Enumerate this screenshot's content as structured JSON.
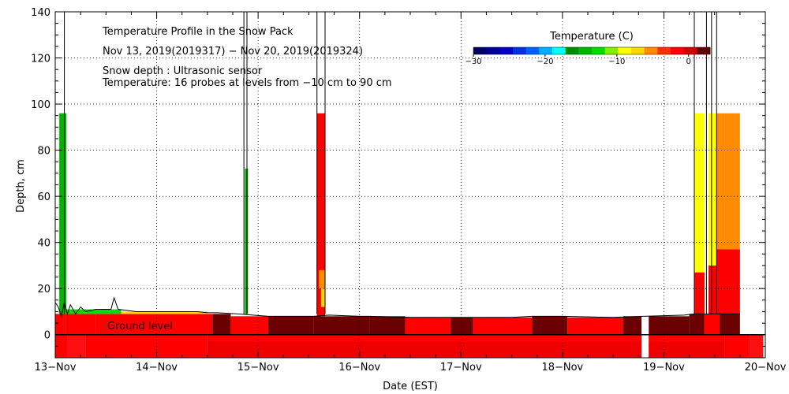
{
  "chart_data": {
    "type": "heatmap",
    "title": "Temperature Profile in the Snow Pack",
    "subtitle": "Nov 13, 2019(2019317) − Nov 20, 2019(2019324)",
    "notes": [
      "Snow depth : Ultrasonic sensor",
      "Temperature: 16 probes at levels from −10 cm to 90 cm"
    ],
    "ground_label": "Ground level",
    "xlabel": "Date (EST)",
    "ylabel": "Depth, cm",
    "x_ticks": [
      "13−Nov",
      "14−Nov",
      "15−Nov",
      "16−Nov",
      "17−Nov",
      "18−Nov",
      "19−Nov",
      "20−Nov"
    ],
    "xlim": [
      0,
      7
    ],
    "y_ticks": [
      0,
      20,
      40,
      60,
      80,
      100,
      120,
      140
    ],
    "ylim": [
      -10,
      140
    ],
    "grid": true,
    "colorbar": {
      "label": "Temperature (C)",
      "ticks": [
        "−30",
        "−20",
        "−10",
        "0"
      ],
      "range": [
        -30,
        3
      ],
      "colors": [
        "#000060",
        "#000090",
        "#0000c0",
        "#0030e0",
        "#0060ff",
        "#00b0ff",
        "#00ffff",
        "#008c00",
        "#00b400",
        "#00dc00",
        "#80f000",
        "#ffff00",
        "#ffd700",
        "#ff8c00",
        "#ff3000",
        "#ff0000",
        "#d00000",
        "#600000"
      ]
    },
    "regions": [
      {
        "x0": 0.0,
        "x1": 0.12,
        "y0": -10,
        "y1": 0,
        "color": "#ff0000"
      },
      {
        "x0": 0.12,
        "x1": 0.3,
        "y0": -10,
        "y1": 0,
        "color": "#ff1010"
      },
      {
        "x0": 0.3,
        "x1": 1.5,
        "y0": -10,
        "y1": 0,
        "color": "#ff0000"
      },
      {
        "x0": 1.5,
        "x1": 6.6,
        "y0": -10,
        "y1": -3,
        "color": "#ee0000"
      },
      {
        "x0": 1.5,
        "x1": 6.6,
        "y0": -3,
        "y1": 0,
        "color": "#ff0000"
      },
      {
        "x0": 6.6,
        "x1": 6.85,
        "y0": -10,
        "y1": 0,
        "color": "#ff0000"
      },
      {
        "x0": 6.85,
        "x1": 6.98,
        "y0": -10,
        "y1": 0,
        "color": "#ff1010"
      },
      {
        "x0": 0.0,
        "x1": 0.1,
        "y0": 0,
        "y1": 9,
        "color": "#ff0000"
      },
      {
        "x0": 0.1,
        "x1": 0.4,
        "y0": 0,
        "y1": 9,
        "color": "#ff0000"
      },
      {
        "x0": 0.4,
        "x1": 1.55,
        "y0": 0,
        "y1": 9,
        "color": "#ff0000"
      },
      {
        "x0": 1.55,
        "x1": 1.73,
        "y0": 0,
        "y1": 9,
        "color": "#6a0000"
      },
      {
        "x0": 1.73,
        "x1": 2.1,
        "y0": 0,
        "y1": 8,
        "color": "#ff0000"
      },
      {
        "x0": 2.1,
        "x1": 2.55,
        "y0": 0,
        "y1": 8,
        "color": "#6a0000"
      },
      {
        "x0": 2.55,
        "x1": 3.1,
        "y0": 0,
        "y1": 8,
        "color": "#6a0000"
      },
      {
        "x0": 3.1,
        "x1": 3.45,
        "y0": 0,
        "y1": 8,
        "color": "#6a0000"
      },
      {
        "x0": 3.45,
        "x1": 3.9,
        "y0": 0,
        "y1": 7.5,
        "color": "#ff0000"
      },
      {
        "x0": 3.9,
        "x1": 4.12,
        "y0": 0,
        "y1": 7.5,
        "color": "#6a0000"
      },
      {
        "x0": 4.12,
        "x1": 4.7,
        "y0": 0,
        "y1": 7.5,
        "color": "#ff0000"
      },
      {
        "x0": 4.7,
        "x1": 5.05,
        "y0": 0,
        "y1": 8,
        "color": "#6a0000"
      },
      {
        "x0": 5.05,
        "x1": 5.6,
        "y0": 0,
        "y1": 7.5,
        "color": "#ff0000"
      },
      {
        "x0": 5.6,
        "x1": 5.78,
        "y0": 0,
        "y1": 8,
        "color": "#6a0000"
      },
      {
        "x0": 5.85,
        "x1": 6.25,
        "y0": 0,
        "y1": 8,
        "color": "#6a0000"
      },
      {
        "x0": 6.25,
        "x1": 6.4,
        "y0": 0,
        "y1": 9,
        "color": "#6a0000"
      },
      {
        "x0": 6.4,
        "x1": 6.55,
        "y0": 0,
        "y1": 9,
        "color": "#ff0000"
      },
      {
        "x0": 6.55,
        "x1": 6.75,
        "y0": 0,
        "y1": 9,
        "color": "#6a0000"
      },
      {
        "x0": 0.04,
        "x1": 0.11,
        "y0": 9,
        "y1": 96,
        "color": "#00b400"
      },
      {
        "x0": 0.11,
        "x1": 0.65,
        "y0": 9,
        "y1": 11,
        "color": "#00dc00"
      },
      {
        "x0": 0.65,
        "x1": 1.5,
        "y0": 9,
        "y1": 10,
        "color": "#ffd700"
      },
      {
        "x0": 1.87,
        "x1": 1.9,
        "y0": 9,
        "y1": 72,
        "color": "#00b400"
      },
      {
        "x0": 2.58,
        "x1": 2.66,
        "y0": 8,
        "y1": 96,
        "color": "#ff0000"
      },
      {
        "x0": 2.6,
        "x1": 2.66,
        "y0": 20,
        "y1": 28,
        "color": "#ff8c00"
      },
      {
        "x0": 2.62,
        "x1": 2.66,
        "y0": 12,
        "y1": 20,
        "color": "#ffd700"
      },
      {
        "x0": 6.3,
        "x1": 6.4,
        "y0": 9,
        "y1": 96,
        "color": "#ffff00"
      },
      {
        "x0": 6.3,
        "x1": 6.4,
        "y0": 9,
        "y1": 27,
        "color": "#ff0000"
      },
      {
        "x0": 6.44,
        "x1": 6.52,
        "y0": 9,
        "y1": 96,
        "color": "#ffff00"
      },
      {
        "x0": 6.44,
        "x1": 6.52,
        "y0": 9,
        "y1": 30,
        "color": "#ff0000"
      },
      {
        "x0": 6.52,
        "x1": 6.6,
        "y0": 9,
        "y1": 96,
        "color": "#ff8c00"
      },
      {
        "x0": 6.52,
        "x1": 6.75,
        "y0": 9,
        "y1": 37,
        "color": "#ff0000"
      },
      {
        "x0": 6.6,
        "x1": 6.75,
        "y0": 37,
        "y1": 96,
        "color": "#ff8c00"
      }
    ],
    "gaps": [
      {
        "x0": 5.78,
        "x1": 5.85,
        "y0": -10,
        "y1": 9
      }
    ],
    "snow_depth_line": [
      [
        0.0,
        14
      ],
      [
        0.03,
        12
      ],
      [
        0.06,
        8
      ],
      [
        0.09,
        14
      ],
      [
        0.12,
        9
      ],
      [
        0.15,
        13
      ],
      [
        0.2,
        9
      ],
      [
        0.25,
        12
      ],
      [
        0.3,
        10
      ],
      [
        0.4,
        11
      ],
      [
        0.55,
        11
      ],
      [
        0.58,
        16
      ],
      [
        0.62,
        11
      ],
      [
        0.8,
        10
      ],
      [
        1.2,
        10
      ],
      [
        1.4,
        10
      ],
      [
        1.5,
        9.5
      ],
      [
        1.6,
        9.5
      ],
      [
        1.8,
        9
      ],
      [
        2.1,
        8
      ],
      [
        2.55,
        8
      ],
      [
        2.7,
        8.5
      ],
      [
        3.0,
        8
      ],
      [
        3.1,
        8
      ],
      [
        3.5,
        7.5
      ],
      [
        4.0,
        7.5
      ],
      [
        4.5,
        7.5
      ],
      [
        4.7,
        8
      ],
      [
        5.0,
        8
      ],
      [
        5.5,
        7.5
      ],
      [
        5.8,
        8
      ],
      [
        6.2,
        8.5
      ],
      [
        6.3,
        9
      ],
      [
        6.75,
        9
      ]
    ],
    "vertical_lines": [
      0.09,
      1.86,
      1.89,
      2.58,
      2.66,
      6.3,
      6.42,
      6.47,
      6.52
    ]
  }
}
